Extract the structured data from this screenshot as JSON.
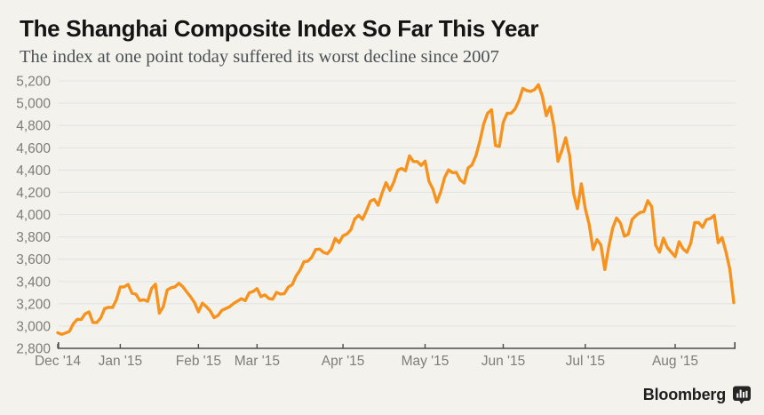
{
  "header": {
    "title": "The Shanghai Composite Index So Far This Year",
    "subtitle": "The index at one point today suffered its worst decline since 2007"
  },
  "footer": {
    "brand": "Bloomberg",
    "logo_icon": "bar-chart-bubble-icon"
  },
  "colors": {
    "background": "#f3f2ed",
    "line": "#f6921e",
    "grid": "#e3e5e2",
    "axis": "#4c4c4c",
    "axis_text": "#7e7e78",
    "title_text": "#141414",
    "subtitle_text": "#4c5156",
    "logo_text": "#1e1e1e"
  },
  "chart_data": {
    "type": "line",
    "title": "The Shanghai Composite Index So Far This Year",
    "subtitle": "The index at one point today suffered its worst decline since 2007",
    "series_name": "Shanghai Composite Index",
    "x_unit": "daily closes, trading days Dec 2014 - Aug 24 2015",
    "xlabel": "",
    "ylabel": "",
    "ylim": [
      2800,
      5200
    ],
    "ytick_step": 200,
    "yticks": [
      2800,
      3000,
      3200,
      3400,
      3600,
      3800,
      4000,
      4200,
      4400,
      4600,
      4800,
      5000,
      5200
    ],
    "ytick_labels": [
      "2,800",
      "3,000",
      "3,200",
      "3,400",
      "3,600",
      "3,800",
      "4,000",
      "4,200",
      "4,400",
      "4,600",
      "4,800",
      "5,000",
      "5,200"
    ],
    "grid": "horizontal",
    "legend": "none",
    "months": [
      {
        "label": "Dec '14",
        "values": [
          2940,
          2925,
          2938,
          2953,
          3022,
          3061,
          3058,
          3109,
          3127,
          3032,
          3032,
          3073,
          3157,
          3168,
          3166,
          3235
        ]
      },
      {
        "label": "Jan '15",
        "values": [
          3351,
          3352,
          3374,
          3294,
          3286,
          3229,
          3236,
          3222,
          3336,
          3376,
          3116,
          3174,
          3323,
          3344,
          3352,
          3384,
          3353,
          3306,
          3262,
          3210
        ]
      },
      {
        "label": "Feb '15",
        "values": [
          3128,
          3205,
          3175,
          3136,
          3075,
          3095,
          3141,
          3157,
          3173,
          3203,
          3223,
          3246,
          3228,
          3298,
          3310
        ]
      },
      {
        "label": "Mar '15",
        "values": [
          3336,
          3263,
          3280,
          3248,
          3241,
          3302,
          3286,
          3291,
          3349,
          3372,
          3449,
          3502,
          3577,
          3582,
          3617,
          3687,
          3691,
          3661,
          3649,
          3691,
          3786,
          3748
        ]
      },
      {
        "label": "Apr '15",
        "values": [
          3810,
          3826,
          3864,
          3961,
          3994,
          3958,
          4034,
          4121,
          4136,
          4084,
          4194,
          4287,
          4218,
          4293,
          4398,
          4414,
          4394,
          4527,
          4476,
          4476,
          4442
        ]
      },
      {
        "label": "May '15",
        "values": [
          4480,
          4298,
          4230,
          4112,
          4205,
          4333,
          4401,
          4376,
          4378,
          4309,
          4283,
          4418,
          4446,
          4529,
          4657,
          4814,
          4910,
          4941,
          4620,
          4611
        ]
      },
      {
        "label": "Jun '15",
        "values": [
          4828,
          4910,
          4909,
          4947,
          5023,
          5132,
          5113,
          5106,
          5121,
          5166,
          5062,
          4887,
          4968,
          4785,
          4478,
          4576,
          4690,
          4527,
          4193,
          4053,
          4277
        ]
      },
      {
        "label": "Jul '15",
        "values": [
          4054,
          3912,
          3687,
          3776,
          3727,
          3507,
          3709,
          3877,
          3970,
          3924,
          3806,
          3824,
          3957,
          3993,
          4018,
          4026,
          4124,
          4071,
          3726,
          3663,
          3789,
          3706,
          3664
        ]
      },
      {
        "label": "Aug '15",
        "values": [
          3623,
          3757,
          3694,
          3662,
          3744,
          3928,
          3928,
          3886,
          3955,
          3965,
          3994,
          3748,
          3794,
          3664,
          3508,
          3210
        ]
      }
    ]
  }
}
